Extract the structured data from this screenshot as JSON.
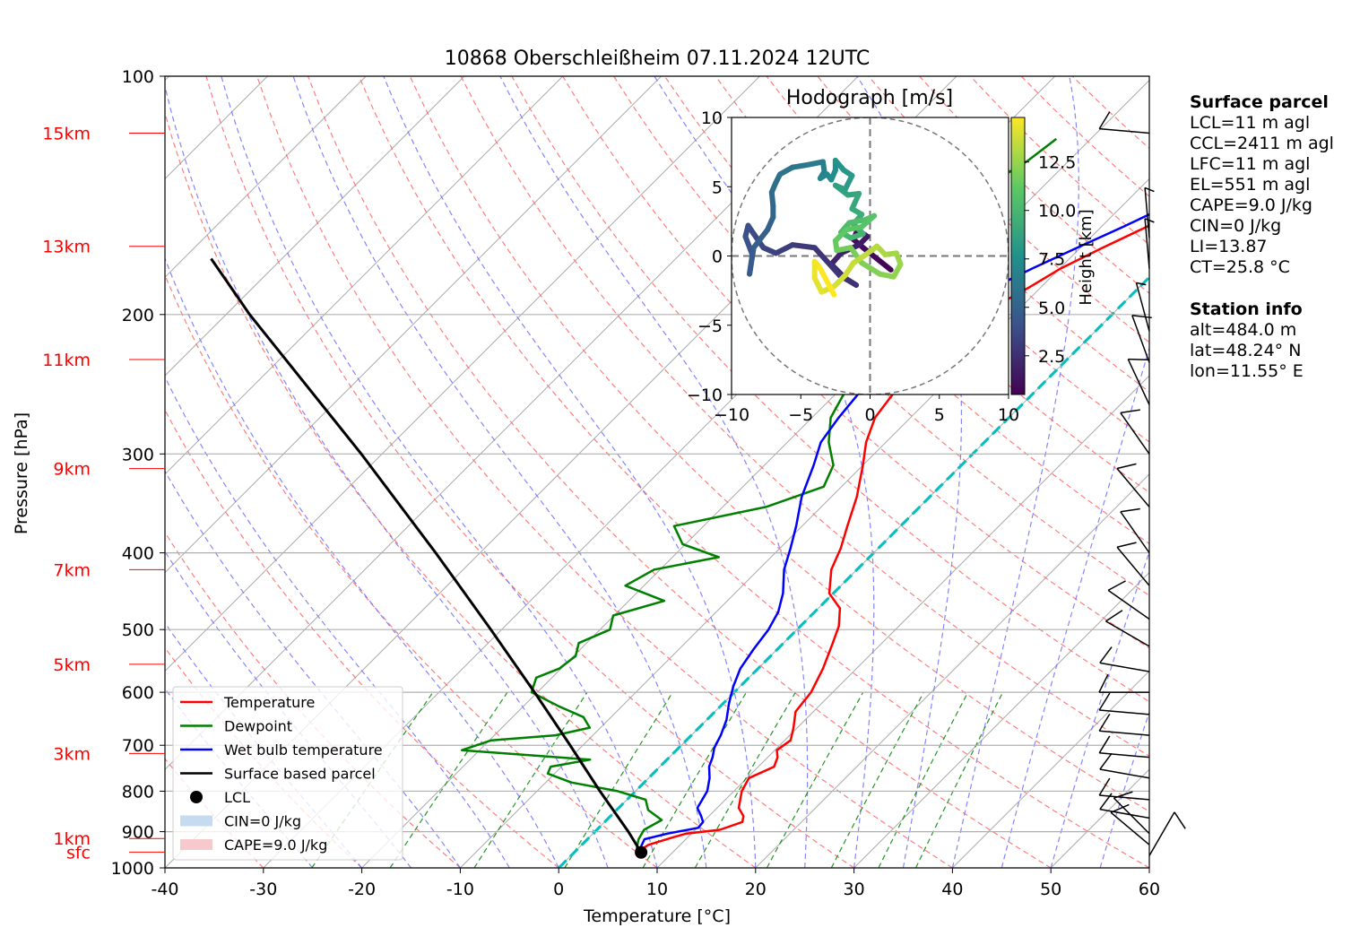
{
  "chart_data": {
    "type": "line",
    "title": "10868 Oberschleißheim 07.11.2024 12UTC",
    "xlabel": "Temperature [°C]",
    "ylabel": "Pressure [hPa]",
    "xlim": [
      -40,
      60
    ],
    "ylim": [
      1000,
      100
    ],
    "y_scale": "log",
    "x_ticks": [
      -40,
      -30,
      -20,
      -10,
      0,
      10,
      20,
      30,
      40,
      50,
      60
    ],
    "y_ticks": [
      100,
      200,
      300,
      400,
      500,
      600,
      700,
      800,
      900,
      1000
    ],
    "height_labels": [
      {
        "label": "sfc",
        "p": 955
      },
      {
        "label": "1km",
        "p": 918
      },
      {
        "label": "3km",
        "p": 717
      },
      {
        "label": "5km",
        "p": 553
      },
      {
        "label": "7km",
        "p": 420
      },
      {
        "label": "9km",
        "p": 313
      },
      {
        "label": "11km",
        "p": 228
      },
      {
        "label": "13km",
        "p": 164
      },
      {
        "label": "15km",
        "p": 118
      }
    ],
    "legend": {
      "placement": "lower-left",
      "entries": [
        {
          "label": "Temperature",
          "color": "#ff0000",
          "kind": "line"
        },
        {
          "label": "Dewpoint",
          "color": "#008000",
          "kind": "line"
        },
        {
          "label": "Wet bulb temperature",
          "color": "#0000ff",
          "kind": "line"
        },
        {
          "label": "Surface based parcel",
          "color": "#000000",
          "kind": "line"
        },
        {
          "label": "LCL",
          "color": "#000000",
          "kind": "dot"
        },
        {
          "label": "CIN=0 J/kg",
          "color": "#c6dbef",
          "kind": "patch"
        },
        {
          "label": "CAPE=9.0 J/kg",
          "color": "#f7c8cc",
          "kind": "patch"
        }
      ]
    },
    "series": [
      {
        "name": "Temperature",
        "color": "#ff0000",
        "points": [
          [
            956,
            6.8
          ],
          [
            948,
            6.5
          ],
          [
            935,
            6.8
          ],
          [
            915,
            8.5
          ],
          [
            905,
            9.5
          ],
          [
            895,
            12.5
          ],
          [
            875,
            14.0
          ],
          [
            860,
            13.5
          ],
          [
            840,
            12.2
          ],
          [
            800,
            10.8
          ],
          [
            770,
            10.2
          ],
          [
            745,
            11.6
          ],
          [
            725,
            11.0
          ],
          [
            710,
            10.2
          ],
          [
            690,
            10.6
          ],
          [
            665,
            9.6
          ],
          [
            635,
            8.2
          ],
          [
            600,
            7.8
          ],
          [
            560,
            6.6
          ],
          [
            520,
            5.0
          ],
          [
            495,
            3.9
          ],
          [
            470,
            2.2
          ],
          [
            450,
            -0.4
          ],
          [
            420,
            -2.6
          ],
          [
            395,
            -3.8
          ],
          [
            370,
            -5.4
          ],
          [
            340,
            -7.4
          ],
          [
            310,
            -10.0
          ],
          [
            290,
            -12.0
          ],
          [
            270,
            -13.6
          ],
          [
            240,
            -14.6
          ],
          [
            220,
            -14.2
          ],
          [
            205,
            -13.8
          ],
          [
            195,
            -12.7
          ],
          [
            185,
            -11.2
          ],
          [
            175,
            -9.9
          ],
          [
            165,
            -7.8
          ],
          [
            155,
            -5.4
          ],
          [
            145,
            -3.4
          ],
          [
            135,
            -1.6
          ],
          [
            125,
            0.4
          ],
          [
            118,
            0.7
          ]
        ]
      },
      {
        "name": "Dewpoint",
        "color": "#008000",
        "points": [
          [
            956,
            6.3
          ],
          [
            940,
            5.8
          ],
          [
            920,
            5.2
          ],
          [
            895,
            4.8
          ],
          [
            870,
            5.6
          ],
          [
            845,
            3.2
          ],
          [
            820,
            1.9
          ],
          [
            800,
            -1.8
          ],
          [
            780,
            -7.4
          ],
          [
            760,
            -10.7
          ],
          [
            745,
            -11.1
          ],
          [
            730,
            -7.8
          ],
          [
            710,
            -21.8
          ],
          [
            690,
            -19.8
          ],
          [
            680,
            -13.8
          ],
          [
            665,
            -11.1
          ],
          [
            645,
            -12.8
          ],
          [
            625,
            -16.4
          ],
          [
            600,
            -20.6
          ],
          [
            575,
            -21.6
          ],
          [
            560,
            -20.2
          ],
          [
            540,
            -19.8
          ],
          [
            520,
            -20.8
          ],
          [
            500,
            -19.0
          ],
          [
            480,
            -20.1
          ],
          [
            460,
            -16.4
          ],
          [
            440,
            -21.9
          ],
          [
            420,
            -20.6
          ],
          [
            405,
            -15.3
          ],
          [
            390,
            -20.3
          ],
          [
            370,
            -23.0
          ],
          [
            350,
            -15.6
          ],
          [
            330,
            -11.8
          ],
          [
            310,
            -13.0
          ],
          [
            290,
            -15.8
          ],
          [
            270,
            -18.1
          ],
          [
            250,
            -19.3
          ],
          [
            235,
            -20.3
          ],
          [
            225,
            -25.9
          ],
          [
            210,
            -25.6
          ],
          [
            195,
            -28.3
          ],
          [
            180,
            -27.8
          ],
          [
            170,
            -30.6
          ],
          [
            160,
            -29.0
          ],
          [
            150,
            -28.0
          ],
          [
            140,
            -26.2
          ],
          [
            128,
            -24.2
          ],
          [
            120,
            -23.5
          ]
        ]
      },
      {
        "name": "Wet bulb temperature",
        "color": "#0000ff",
        "points": [
          [
            956,
            6.6
          ],
          [
            940,
            6.2
          ],
          [
            920,
            5.8
          ],
          [
            905,
            7.6
          ],
          [
            890,
            10.1
          ],
          [
            875,
            10.0
          ],
          [
            860,
            9.2
          ],
          [
            840,
            8.0
          ],
          [
            800,
            7.3
          ],
          [
            770,
            6.2
          ],
          [
            745,
            5.0
          ],
          [
            725,
            4.4
          ],
          [
            705,
            3.6
          ],
          [
            680,
            3.0
          ],
          [
            650,
            2.0
          ],
          [
            620,
            0.6
          ],
          [
            590,
            -0.7
          ],
          [
            560,
            -1.8
          ],
          [
            530,
            -2.4
          ],
          [
            500,
            -2.9
          ],
          [
            475,
            -3.7
          ],
          [
            450,
            -5.1
          ],
          [
            420,
            -7.4
          ],
          [
            395,
            -8.9
          ],
          [
            370,
            -10.6
          ],
          [
            340,
            -13.0
          ],
          [
            310,
            -15.0
          ],
          [
            290,
            -16.6
          ],
          [
            270,
            -17.3
          ],
          [
            240,
            -18.0
          ],
          [
            220,
            -18.2
          ],
          [
            205,
            -17.8
          ],
          [
            195,
            -16.5
          ],
          [
            185,
            -14.8
          ],
          [
            175,
            -12.8
          ],
          [
            165,
            -10.4
          ],
          [
            155,
            -7.8
          ],
          [
            145,
            -5.2
          ],
          [
            135,
            -2.8
          ],
          [
            125,
            -0.4
          ],
          [
            118,
            0.4
          ]
        ]
      },
      {
        "name": "Surface based parcel",
        "color": "#000000",
        "points": [
          [
            956,
            6.8
          ],
          [
            900,
            3.4
          ],
          [
            800,
            -3.6
          ],
          [
            700,
            -11.3
          ],
          [
            600,
            -20.3
          ],
          [
            500,
            -31.1
          ],
          [
            400,
            -44.5
          ],
          [
            300,
            -62.1
          ],
          [
            200,
            -87.6
          ],
          [
            170,
            -97.2
          ]
        ]
      }
    ],
    "lcl": {
      "p": 956,
      "t": 6.8
    },
    "hodograph": {
      "title": "Hodograph [m/s]",
      "xlim": [
        -10,
        10
      ],
      "ylim": [
        -10,
        10
      ],
      "ticks": [
        -10,
        -5,
        0,
        5,
        10
      ],
      "colorbar": {
        "label": "Height [km]",
        "ticks": [
          2.5,
          5.0,
          7.5,
          10.0,
          12.5
        ],
        "range": [
          0.5,
          14.8
        ],
        "colormap": "viridis"
      },
      "points": [
        [
          1.5,
          -1.0,
          0.5
        ],
        [
          0.5,
          -0.2,
          0.7
        ],
        [
          -0.5,
          0.6,
          0.9
        ],
        [
          -1.2,
          1.2,
          1.0
        ],
        [
          -0.9,
          1.9,
          1.2
        ],
        [
          -0.2,
          1.4,
          1.4
        ],
        [
          -0.8,
          0.8,
          1.6
        ],
        [
          -2.1,
          0.2,
          1.8
        ],
        [
          -2.8,
          -0.6,
          2.0
        ],
        [
          -1.8,
          -1.6,
          2.2
        ],
        [
          -1.0,
          -2.1,
          2.4
        ],
        [
          -2.2,
          -1.4,
          2.6
        ],
        [
          -4.0,
          0.6,
          2.8
        ],
        [
          -5.6,
          0.8,
          3.0
        ],
        [
          -6.8,
          0.2,
          3.2
        ],
        [
          -7.7,
          0.6,
          3.4
        ],
        [
          -8.4,
          1.6,
          3.6
        ],
        [
          -8.8,
          2.2,
          3.8
        ],
        [
          -9.0,
          1.4,
          4.0
        ],
        [
          -8.5,
          0.1,
          4.2
        ],
        [
          -8.7,
          -1.3,
          4.4
        ],
        [
          -8.4,
          0.6,
          4.6
        ],
        [
          -7.4,
          1.9,
          4.8
        ],
        [
          -7.0,
          2.8,
          5.0
        ],
        [
          -7.0,
          3.6,
          5.2
        ],
        [
          -7.1,
          4.6,
          5.4
        ],
        [
          -6.8,
          5.3,
          5.6
        ],
        [
          -6.5,
          5.9,
          5.8
        ],
        [
          -5.6,
          6.4,
          6.0
        ],
        [
          -4.4,
          6.6,
          6.2
        ],
        [
          -3.4,
          6.8,
          6.4
        ],
        [
          -3.3,
          6.1,
          6.6
        ],
        [
          -3.6,
          5.6,
          6.8
        ],
        [
          -3.1,
          5.9,
          7.0
        ],
        [
          -2.8,
          5.5,
          7.2
        ],
        [
          -2.5,
          6.2,
          7.4
        ],
        [
          -2.5,
          6.9,
          7.6
        ],
        [
          -1.9,
          6.2,
          7.8
        ],
        [
          -1.3,
          5.8,
          8.0
        ],
        [
          -1.8,
          4.8,
          8.2
        ],
        [
          -2.5,
          5.1,
          8.4
        ],
        [
          -1.6,
          4.4,
          8.6
        ],
        [
          -0.8,
          4.5,
          8.8
        ],
        [
          -1.3,
          3.4,
          9.0
        ],
        [
          -0.6,
          3.0,
          9.2
        ],
        [
          -1.2,
          2.3,
          9.4
        ],
        [
          -0.5,
          1.6,
          9.6
        ],
        [
          -1.4,
          1.3,
          9.8
        ],
        [
          -2.1,
          1.7,
          10.0
        ],
        [
          -1.5,
          2.4,
          10.2
        ],
        [
          -0.4,
          2.6,
          10.4
        ],
        [
          0.3,
          2.9,
          10.6
        ],
        [
          -0.6,
          2.1,
          10.8
        ],
        [
          -1.7,
          1.9,
          11.0
        ],
        [
          -2.5,
          1.1,
          11.2
        ],
        [
          -2.4,
          0.4,
          11.4
        ],
        [
          -1.4,
          0.6,
          11.6
        ],
        [
          -0.6,
          -0.5,
          11.8
        ],
        [
          0.7,
          -1.3,
          12.0
        ],
        [
          1.7,
          -1.5,
          12.2
        ],
        [
          2.2,
          -0.6,
          12.4
        ],
        [
          1.9,
          0.2,
          12.6
        ],
        [
          1.1,
          0.1,
          12.8
        ],
        [
          0.5,
          0.7,
          13.0
        ],
        [
          -0.3,
          0.1,
          13.2
        ],
        [
          -1.2,
          -0.5,
          13.4
        ],
        [
          -1.8,
          -1.4,
          13.6
        ],
        [
          -2.6,
          -2.2,
          13.8
        ],
        [
          -3.5,
          -2.6,
          14.0
        ],
        [
          -4.0,
          -1.6,
          14.2
        ],
        [
          -4.0,
          -0.4,
          14.4
        ],
        [
          -3.6,
          -0.9,
          14.6
        ],
        [
          -2.6,
          -2.8,
          14.8
        ]
      ]
    },
    "wind_barbs": [
      {
        "p": 965,
        "dir": 30,
        "speed": 10
      },
      {
        "p": 935,
        "dir": 310,
        "speed": 10
      },
      {
        "p": 905,
        "dir": 315,
        "speed": 10
      },
      {
        "p": 865,
        "dir": 280,
        "speed": 10
      },
      {
        "p": 820,
        "dir": 275,
        "speed": 10
      },
      {
        "p": 770,
        "dir": 280,
        "speed": 10
      },
      {
        "p": 725,
        "dir": 275,
        "speed": 10
      },
      {
        "p": 680,
        "dir": 275,
        "speed": 10
      },
      {
        "p": 640,
        "dir": 275,
        "speed": 10
      },
      {
        "p": 600,
        "dir": 270,
        "speed": 10
      },
      {
        "p": 565,
        "dir": 280,
        "speed": 10
      },
      {
        "p": 525,
        "dir": 300,
        "speed": 10
      },
      {
        "p": 485,
        "dir": 305,
        "speed": 10
      },
      {
        "p": 440,
        "dir": 320,
        "speed": 10
      },
      {
        "p": 400,
        "dir": 325,
        "speed": 10
      },
      {
        "p": 350,
        "dir": 320,
        "speed": 10
      },
      {
        "p": 300,
        "dir": 325,
        "speed": 10
      },
      {
        "p": 260,
        "dir": 335,
        "speed": 10
      },
      {
        "p": 230,
        "dir": 340,
        "speed": 10
      },
      {
        "p": 210,
        "dir": 345,
        "speed": 5
      },
      {
        "p": 175,
        "dir": 355,
        "speed": 5
      },
      {
        "p": 160,
        "dir": 355,
        "speed": 5
      },
      {
        "p": 118,
        "dir": 275,
        "speed": 10
      }
    ]
  },
  "surface_parcel": {
    "heading": "Surface parcel",
    "lines": [
      "LCL=11 m agl",
      "CCL=2411 m agl",
      "LFC=11 m agl",
      "EL=551 m agl",
      "CAPE=9.0 J/kg",
      "CIN=0 J/kg",
      "LI=13.87",
      "CT=25.8 °C"
    ]
  },
  "station_info": {
    "heading": "Station info",
    "lines": [
      "alt=484.0 m",
      "lat=48.24° N",
      "lon=11.55° E"
    ]
  },
  "colors": {
    "isotherm": "#aaaaaa",
    "dry_adiabat": "#ff6666",
    "moist_adiabat": "#6666ff",
    "mixing_ratio": "#008000",
    "freezing_line": "#00bfbf",
    "height_label": "#ff0000",
    "grid": "#b0b0b0"
  }
}
